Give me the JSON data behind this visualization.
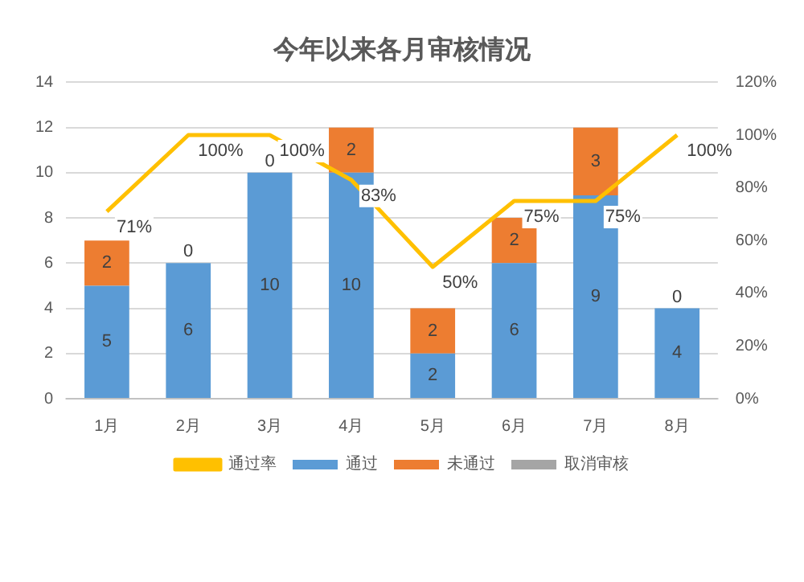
{
  "chart_data": {
    "type": "bar",
    "title": "今年以来各月审核情况",
    "categories": [
      "1月",
      "2月",
      "3月",
      "4月",
      "5月",
      "6月",
      "7月",
      "8月"
    ],
    "stacked": true,
    "series": [
      {
        "name": "通过",
        "color": "#5b9bd5",
        "values": [
          5,
          6,
          10,
          10,
          2,
          6,
          9,
          4
        ],
        "value_labels": [
          "5",
          "6",
          "10",
          "10",
          "2",
          "6",
          "9",
          "4"
        ]
      },
      {
        "name": "未通过",
        "color": "#ed7d31",
        "values": [
          2,
          0,
          0,
          2,
          2,
          2,
          3,
          0
        ],
        "value_labels": [
          "2",
          "0",
          "0",
          "2",
          "2",
          "2",
          "3",
          "0"
        ]
      },
      {
        "name": "取消审核",
        "color": "#a5a5a5",
        "values": [
          0,
          0,
          0,
          0,
          0,
          0,
          0,
          0
        ]
      },
      {
        "name": "通过率",
        "type": "line",
        "axis": "y2",
        "color": "#ffc000",
        "values": [
          71,
          100,
          100,
          83,
          50,
          75,
          75,
          100
        ],
        "value_labels": [
          "71%",
          "100%",
          "100%",
          "83%",
          "50%",
          "75%",
          "75%",
          "100%"
        ]
      }
    ],
    "ylim": [
      0,
      14
    ],
    "yticks": [
      0,
      2,
      4,
      6,
      8,
      10,
      12,
      14
    ],
    "y2lim": [
      0,
      120
    ],
    "y2ticks": [
      {
        "value": 0,
        "label": "0%"
      },
      {
        "value": 20,
        "label": "20%"
      },
      {
        "value": 40,
        "label": "40%"
      },
      {
        "value": 60,
        "label": "60%"
      },
      {
        "value": 80,
        "label": "80%"
      },
      {
        "value": 100,
        "label": "100%"
      },
      {
        "value": 120,
        "label": "120%"
      }
    ],
    "grid": "y",
    "legend": "bottom",
    "marker": "none",
    "line_style": "solid"
  }
}
